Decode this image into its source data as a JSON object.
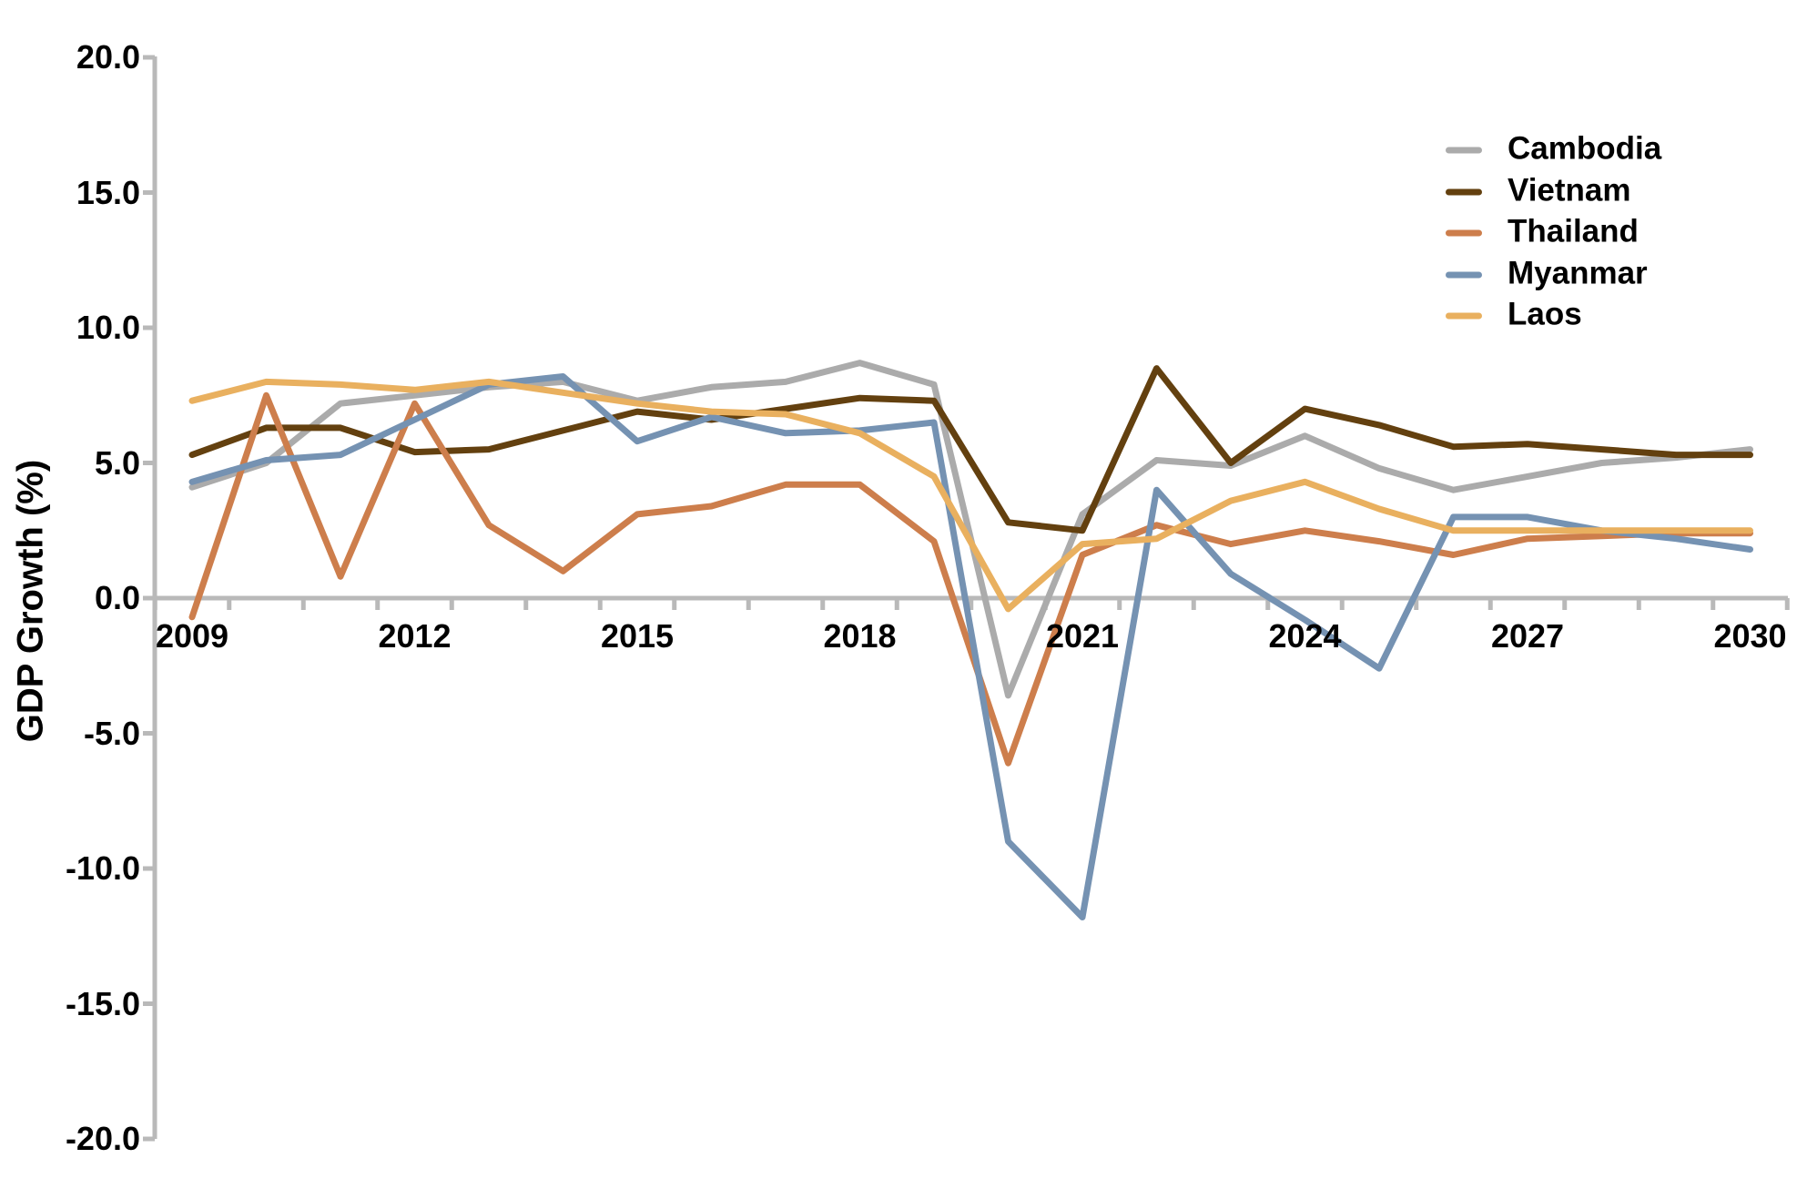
{
  "chart_data": {
    "type": "line",
    "title": "",
    "xlabel": "",
    "ylabel": "GDP Growth (%)",
    "ylim": [
      -20,
      20
    ],
    "grid": false,
    "legend_position": "top-right",
    "axis_color": "#b9b9b9",
    "text_color": "#000000",
    "x": [
      2009,
      2010,
      2011,
      2012,
      2013,
      2014,
      2015,
      2016,
      2017,
      2018,
      2019,
      2020,
      2021,
      2022,
      2023,
      2024,
      2025,
      2026,
      2027,
      2028,
      2029,
      2030
    ],
    "x_ticks": [
      {
        "label": "2009",
        "year": 2009
      },
      {
        "label": "2012",
        "year": 2012
      },
      {
        "label": "2015",
        "year": 2015
      },
      {
        "label": "2018",
        "year": 2018
      },
      {
        "label": "2021",
        "year": 2021
      },
      {
        "label": "2024",
        "year": 2024
      },
      {
        "label": "2027",
        "year": 2027
      },
      {
        "label": "2030",
        "year": 2030
      }
    ],
    "y_ticks": [
      {
        "label": "20.0",
        "value": 20
      },
      {
        "label": "15.0",
        "value": 15
      },
      {
        "label": "10.0",
        "value": 10
      },
      {
        "label": "5.0",
        "value": 5
      },
      {
        "label": "0.0",
        "value": 0
      },
      {
        "label": "-5.0",
        "value": -5
      },
      {
        "label": "-10.0",
        "value": -10
      },
      {
        "label": "-15.0",
        "value": -15
      },
      {
        "label": "-20.0",
        "value": -20
      }
    ],
    "series": [
      {
        "name": "Cambodia",
        "color": "#ababab",
        "values": [
          4.1,
          5.0,
          7.2,
          7.5,
          7.8,
          8.0,
          7.3,
          7.8,
          8.0,
          8.7,
          7.9,
          -3.6,
          3.1,
          5.1,
          4.9,
          6.0,
          4.8,
          4.0,
          4.5,
          5.0,
          5.2,
          5.5
        ]
      },
      {
        "name": "Vietnam",
        "color": "#63400f",
        "values": [
          5.3,
          6.3,
          6.3,
          5.4,
          5.5,
          6.2,
          6.9,
          6.6,
          7.0,
          7.4,
          7.3,
          2.8,
          2.5,
          8.5,
          5.0,
          7.0,
          6.4,
          5.6,
          5.7,
          5.5,
          5.3,
          5.3
        ]
      },
      {
        "name": "Thailand",
        "color": "#cd7e4c",
        "values": [
          -0.7,
          7.5,
          0.8,
          7.2,
          2.7,
          1.0,
          3.1,
          3.4,
          4.2,
          4.2,
          2.1,
          -6.1,
          1.6,
          2.7,
          2.0,
          2.5,
          2.1,
          1.6,
          2.2,
          2.3,
          2.4,
          2.4
        ]
      },
      {
        "name": "Myanmar",
        "color": "#7592b2",
        "values": [
          4.3,
          5.1,
          5.3,
          6.6,
          7.9,
          8.2,
          5.8,
          6.7,
          6.1,
          6.2,
          6.5,
          -9.0,
          -11.8,
          4.0,
          0.9,
          -0.8,
          -2.6,
          3.0,
          3.0,
          2.5,
          2.2,
          1.8
        ]
      },
      {
        "name": "Laos",
        "color": "#e9b05f",
        "values": [
          7.3,
          8.0,
          7.9,
          7.7,
          8.0,
          7.6,
          7.2,
          6.9,
          6.8,
          6.1,
          4.5,
          -0.4,
          2.0,
          2.2,
          3.6,
          4.3,
          3.3,
          2.5,
          2.5,
          2.5,
          2.5,
          2.5
        ]
      }
    ]
  }
}
